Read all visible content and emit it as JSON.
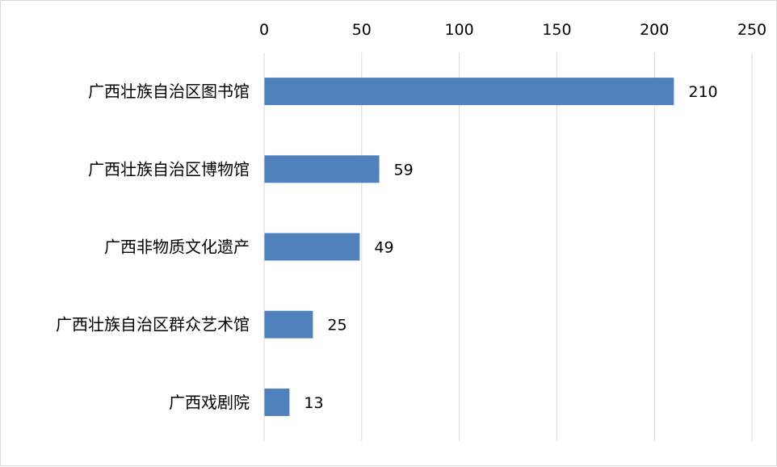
{
  "chart_data": {
    "type": "bar",
    "orientation": "horizontal",
    "title": "",
    "xlabel": "",
    "ylabel": "",
    "xlim": [
      0,
      250
    ],
    "x_ticks": [
      0,
      50,
      100,
      150,
      200,
      250
    ],
    "x_axis_position": "top",
    "grid": true,
    "bar_color": "#4f81bd",
    "grid_color": "#d9d9d9",
    "data_labels": true,
    "categories": [
      "广西壮族自治区图书馆",
      "广西壮族自治区博物馆",
      "广西非物质文化遗产",
      "广西壮族自治区群众艺术馆",
      "广西戏剧院"
    ],
    "values": [
      210,
      59,
      49,
      25,
      13
    ]
  }
}
